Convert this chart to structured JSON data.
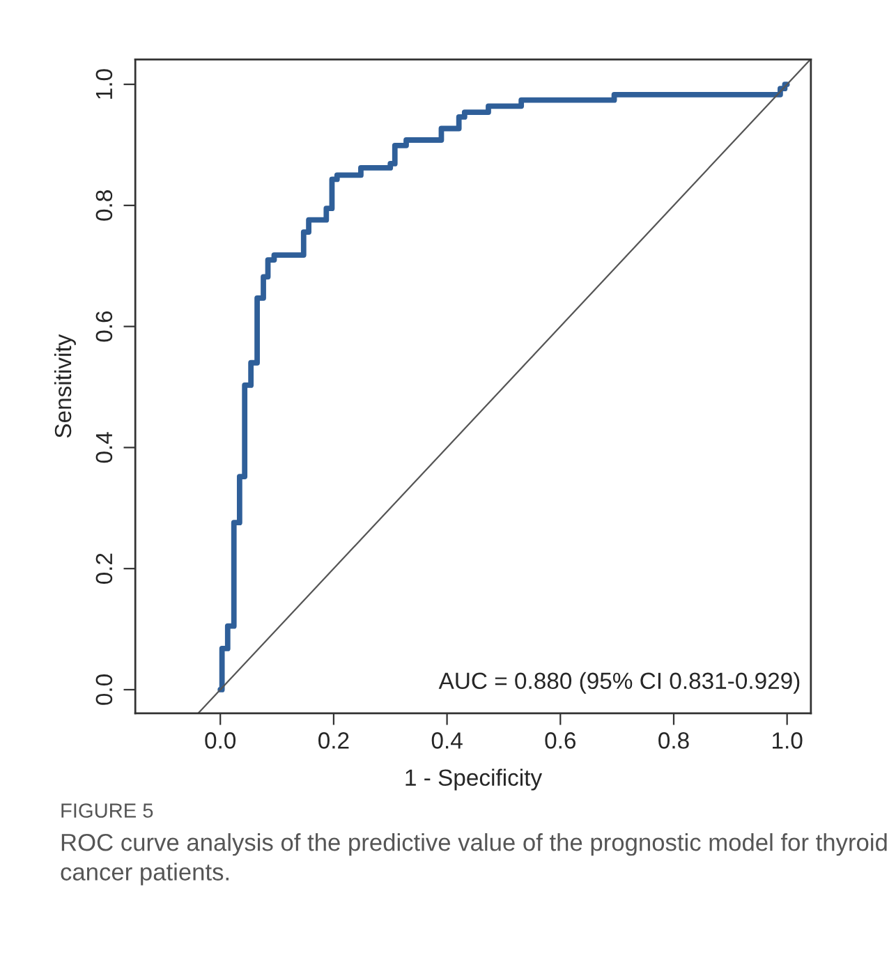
{
  "chart_data": {
    "type": "line",
    "xlabel": "1 - Specificity",
    "ylabel": "Sensitivity",
    "annotations": [
      "AUC = 0.880 (95% CI 0.831-0.929)",
      "FIGURE 5",
      "ROC curve analysis of the predictive value of the prognostic model for thyroid cancer patients."
    ],
    "series": [
      {
        "color": "#2f5f99",
        "x": [
          0,
          0.003,
          0.003,
          0.013,
          0.013,
          0.024,
          0.024,
          0.034,
          0.034,
          0.043,
          0.043,
          0.054,
          0.054,
          0.065,
          0.065,
          0.076,
          0.076,
          0.084,
          0.084,
          0.095,
          0.095,
          0.147,
          0.147,
          0.156,
          0.156,
          0.187,
          0.187,
          0.197,
          0.197,
          0.206,
          0.206,
          0.248,
          0.248,
          0.3,
          0.3,
          0.308,
          0.308,
          0.328,
          0.328,
          0.39,
          0.39,
          0.421,
          0.421,
          0.431,
          0.431,
          0.473,
          0.473,
          0.531,
          0.531,
          0.695,
          0.695,
          0.988,
          0.988,
          0.996,
          0.996,
          1.0
        ],
        "values": [
          0,
          0,
          0.068,
          0.068,
          0.105,
          0.105,
          0.276,
          0.276,
          0.352,
          0.352,
          0.503,
          0.503,
          0.54,
          0.54,
          0.647,
          0.647,
          0.682,
          0.682,
          0.71,
          0.71,
          0.718,
          0.718,
          0.756,
          0.756,
          0.776,
          0.776,
          0.795,
          0.795,
          0.843,
          0.843,
          0.85,
          0.85,
          0.862,
          0.862,
          0.869,
          0.869,
          0.899,
          0.899,
          0.908,
          0.908,
          0.927,
          0.927,
          0.946,
          0.946,
          0.954,
          0.954,
          0.964,
          0.964,
          0.974,
          0.974,
          0.983,
          0.983,
          0.993,
          0.993,
          1.0,
          1.0
        ]
      },
      {
        "color": "#555555",
        "x": [
          -0.039,
          1.041
        ],
        "values": [
          -0.039,
          1.041
        ]
      }
    ],
    "xlim": [
      -0.15,
      1.042
    ],
    "ylim": [
      -0.039,
      1.041
    ],
    "xticks": [
      {
        "value": 0,
        "label": "0.0"
      },
      0.2,
      0.4,
      0.6,
      0.8,
      {
        "value": 1,
        "label": "1.0"
      }
    ],
    "yticks": [
      {
        "value": 0,
        "label": "0.0"
      },
      0.2,
      0.4,
      0.6,
      0.8,
      {
        "value": 1,
        "label": "1.0"
      }
    ],
    "grid": false,
    "marker": "none",
    "line_style": "solid"
  }
}
